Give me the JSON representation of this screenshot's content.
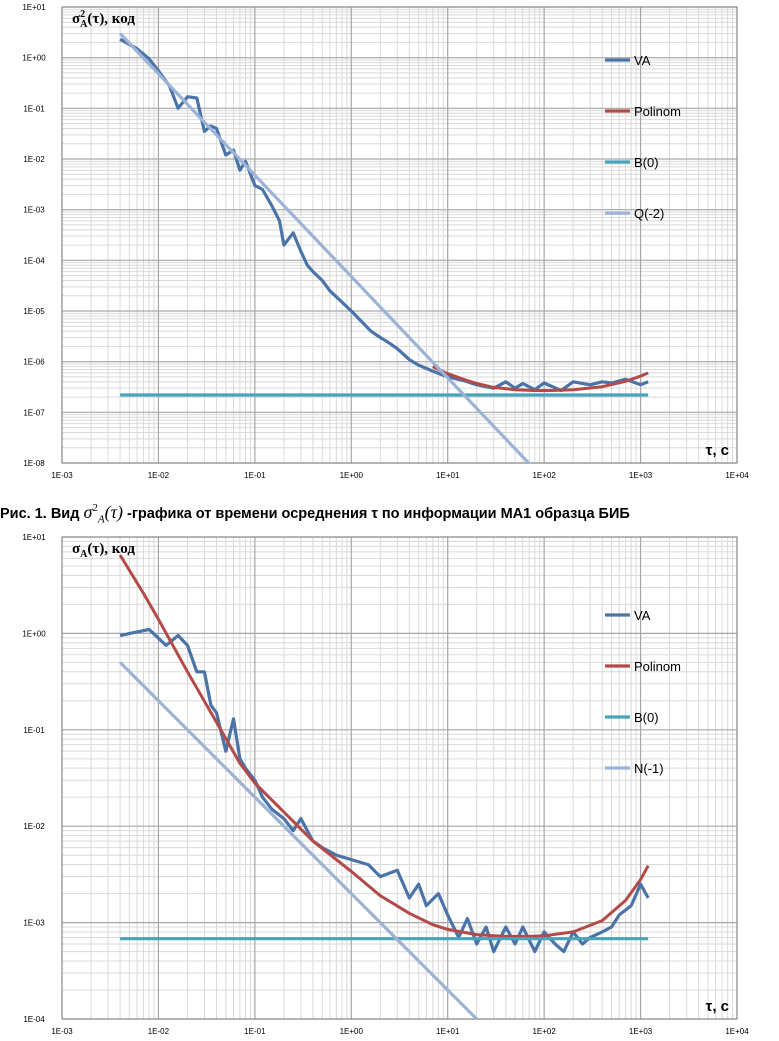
{
  "caption": {
    "prefix": "Рис. 1. Вид",
    "formula": "σ",
    "suffix": "-графика от времени осреднения τ по информации МА1 образца БИБ"
  },
  "chart_data": [
    {
      "type": "line",
      "x_scale": "log",
      "y_scale": "log",
      "xlim": [
        0.001,
        10000
      ],
      "ylim": [
        1e-08,
        10
      ],
      "x_ticks": [
        "1E-03",
        "1E-02",
        "1E-01",
        "1E+00",
        "1E+01",
        "1E+02",
        "1E+03",
        "1E+04"
      ],
      "y_ticks": [
        "1E-08",
        "1E-07",
        "1E-06",
        "1E-05",
        "1E-04",
        "1E-03",
        "1E-02",
        "1E-01",
        "1E+00",
        "1E+01"
      ],
      "ylabel": "σ²A(τ), код",
      "xlabel": "τ, с",
      "grid": true,
      "legend_position": "right",
      "series": [
        {
          "name": "VA",
          "color": "#4a74a8",
          "x": [
            0.004,
            0.006,
            0.008,
            0.01,
            0.013,
            0.016,
            0.02,
            0.025,
            0.03,
            0.035,
            0.04,
            0.05,
            0.06,
            0.07,
            0.08,
            0.1,
            0.12,
            0.15,
            0.18,
            0.2,
            0.25,
            0.3,
            0.35,
            0.4,
            0.5,
            0.6,
            0.8,
            1.0,
            1.3,
            1.6,
            2.0,
            2.5,
            3.0,
            4.0,
            5.0,
            7.0,
            10,
            15,
            20,
            30,
            40,
            50,
            60,
            80,
            100,
            150,
            200,
            300,
            400,
            500,
            700,
            1000,
            1200
          ],
          "y": [
            2.3,
            1.5,
            0.95,
            0.55,
            0.28,
            0.1,
            0.17,
            0.16,
            0.035,
            0.045,
            0.04,
            0.012,
            0.015,
            0.006,
            0.009,
            0.003,
            0.0025,
            0.0012,
            0.0006,
            0.0002,
            0.00035,
            0.00015,
            8e-05,
            6e-05,
            4e-05,
            2.5e-05,
            1.5e-05,
            1e-05,
            6e-06,
            4e-06,
            3e-06,
            2.3e-06,
            1.8e-06,
            1.1e-06,
            8.5e-07,
            6.5e-07,
            5e-07,
            4.2e-07,
            3.5e-07,
            3e-07,
            4e-07,
            3e-07,
            3.7e-07,
            2.8e-07,
            3.8e-07,
            2.7e-07,
            4e-07,
            3.5e-07,
            4e-07,
            3.8e-07,
            4.5e-07,
            3.5e-07,
            4e-07
          ]
        },
        {
          "name": "Polinom",
          "color": "#b34a48",
          "x": [
            7,
            10,
            15,
            20,
            30,
            50,
            80,
            120,
            200,
            400,
            700,
            1000,
            1200
          ],
          "y": [
            8e-07,
            5.8e-07,
            4.4e-07,
            3.7e-07,
            3.1e-07,
            2.8e-07,
            2.7e-07,
            2.7e-07,
            2.8e-07,
            3.2e-07,
            4.1e-07,
            5.2e-07,
            6e-07
          ]
        },
        {
          "name": "B(0)",
          "color": "#4aa3b8",
          "x": [
            0.004,
            1200
          ],
          "y": [
            2.2e-07,
            2.2e-07
          ]
        },
        {
          "name": "Q(-2)",
          "color": "#9db3d6",
          "x": [
            0.004,
            90
          ],
          "y": [
            3.0,
            5.9e-09
          ]
        }
      ]
    },
    {
      "type": "line",
      "x_scale": "log",
      "y_scale": "log",
      "xlim": [
        0.001,
        10000
      ],
      "ylim": [
        0.0001,
        10
      ],
      "x_ticks": [
        "1E-03",
        "1E-02",
        "1E-01",
        "1E+00",
        "1E+01",
        "1E+02",
        "1E+03",
        "1E+04"
      ],
      "y_ticks": [
        "1E-04",
        "1E-03",
        "1E-02",
        "1E-01",
        "1E+00",
        "1E+01"
      ],
      "ylabel": "σA(τ), код",
      "xlabel": "τ, с",
      "grid": true,
      "legend_position": "right",
      "series": [
        {
          "name": "VA",
          "color": "#4a74a8",
          "x": [
            0.004,
            0.008,
            0.012,
            0.016,
            0.02,
            0.025,
            0.03,
            0.035,
            0.04,
            0.05,
            0.06,
            0.07,
            0.08,
            0.1,
            0.12,
            0.15,
            0.2,
            0.25,
            0.3,
            0.4,
            0.5,
            0.7,
            1.0,
            1.5,
            2.0,
            3.0,
            4.0,
            5.0,
            6.0,
            8.0,
            10,
            13,
            16,
            20,
            25,
            30,
            40,
            50,
            60,
            80,
            100,
            130,
            160,
            200,
            250,
            300,
            400,
            500,
            600,
            800,
            1000,
            1200
          ],
          "y": [
            0.95,
            1.1,
            0.75,
            0.95,
            0.75,
            0.4,
            0.4,
            0.18,
            0.15,
            0.06,
            0.13,
            0.05,
            0.04,
            0.03,
            0.02,
            0.015,
            0.012,
            0.009,
            0.012,
            0.007,
            0.006,
            0.005,
            0.0045,
            0.004,
            0.003,
            0.0035,
            0.0018,
            0.0025,
            0.0015,
            0.002,
            0.0012,
            0.0007,
            0.0011,
            0.0006,
            0.0009,
            0.0005,
            0.0009,
            0.0006,
            0.0009,
            0.0005,
            0.0008,
            0.0006,
            0.0005,
            0.0008,
            0.0006,
            0.0007,
            0.0008,
            0.0009,
            0.0012,
            0.0015,
            0.0025,
            0.0018
          ]
        },
        {
          "name": "Polinom",
          "color": "#b34a48",
          "x": [
            0.004,
            0.007,
            0.01,
            0.02,
            0.04,
            0.07,
            0.1,
            0.2,
            0.4,
            0.7,
            1.0,
            2.0,
            4.0,
            7.0,
            10,
            20,
            40,
            70,
            100,
            200,
            400,
            700,
            1000,
            1200
          ],
          "y": [
            6.5,
            2.6,
            1.4,
            0.4,
            0.12,
            0.045,
            0.028,
            0.014,
            0.007,
            0.0045,
            0.0034,
            0.0019,
            0.00125,
            0.00095,
            0.00085,
            0.00075,
            0.00072,
            0.00072,
            0.00073,
            0.0008,
            0.00105,
            0.0017,
            0.0028,
            0.0039
          ]
        },
        {
          "name": "B(0)",
          "color": "#4aa3b8",
          "x": [
            0.004,
            1200
          ],
          "y": [
            0.00068,
            0.00068
          ]
        },
        {
          "name": "N(-1)",
          "color": "#9db3d6",
          "x": [
            0.004,
            20
          ],
          "y": [
            0.5,
            0.0001
          ]
        }
      ]
    }
  ]
}
